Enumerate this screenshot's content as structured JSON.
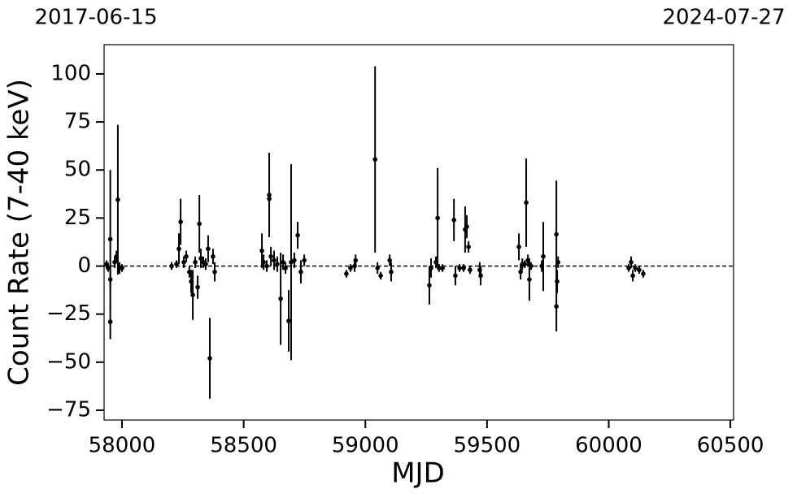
{
  "chart_data": {
    "type": "errorbar-scatter",
    "xlabel": "MJD",
    "ylabel": "Count Rate (7-40 keV)",
    "annotations": [
      "2017-06-15",
      "2024-07-27"
    ],
    "xlim": [
      57926.5,
      60513
    ],
    "ylim": [
      -80.1,
      115.2
    ],
    "xticks": [
      58000,
      58500,
      59000,
      59500,
      60000,
      60500
    ],
    "yticks": [
      {
        "value": -75,
        "label": "−75"
      },
      {
        "value": -50,
        "label": "−50"
      },
      {
        "value": -25,
        "label": "−25"
      },
      0,
      25,
      50,
      75,
      100
    ],
    "hline": 0,
    "series": [
      {
        "color": "#000000",
        "x": [
          57937,
          57943,
          57952,
          57952,
          57952,
          57970,
          57977,
          57983,
          57990,
          58000,
          58204,
          58224,
          58234,
          58241,
          58254,
          58264,
          58277,
          58284,
          58291,
          58301,
          58311,
          58318,
          58324,
          58334,
          58344,
          58354,
          58361,
          58374,
          58381,
          58575,
          58582,
          58595,
          58605,
          58605,
          58612,
          58625,
          58638,
          58652,
          58662,
          58672,
          58685,
          58695,
          58708,
          58722,
          58735,
          58749,
          58922,
          58939,
          58956,
          58960,
          59040,
          59050,
          59063,
          59100,
          59106,
          59263,
          59270,
          59290,
          59297,
          59303,
          59317,
          59364,
          59370,
          59387,
          59404,
          59410,
          59417,
          59424,
          59430,
          59470,
          59474,
          59631,
          59638,
          59645,
          59655,
          59661,
          59668,
          59674,
          59681,
          59725,
          59731,
          59785,
          59785,
          59788,
          59792,
          60082,
          60092,
          60099,
          60109,
          60125,
          60142
        ],
        "values": [
          1,
          -1,
          14,
          -29,
          -7,
          2,
          5,
          34.5,
          -1,
          -1,
          0,
          1,
          9,
          23,
          2,
          5,
          -3,
          -8,
          -15,
          2,
          -11,
          22,
          4,
          2,
          1,
          9,
          -48,
          5,
          -3,
          8,
          2,
          0,
          37,
          35,
          5,
          3,
          1,
          -17,
          2,
          -1,
          -28.5,
          2,
          3,
          16,
          -3,
          3,
          -4,
          -1,
          0,
          3,
          55.5,
          -1,
          -5,
          3,
          -3,
          -10,
          -1,
          2,
          25,
          -1,
          -1,
          24,
          -5,
          -1,
          -1,
          19,
          20.5,
          10,
          -2,
          -2,
          -5,
          10,
          -3,
          1,
          1,
          33,
          3,
          -7,
          0,
          0,
          5,
          16.5,
          -21,
          -8,
          2,
          -1,
          2,
          -5,
          -1,
          -2,
          -4
        ],
        "errors": [
          2,
          2,
          36,
          9,
          5,
          3,
          3,
          39,
          3,
          2,
          2,
          2,
          8,
          12,
          3,
          3,
          3,
          6,
          13,
          3,
          6,
          15,
          5,
          3,
          3,
          7,
          21,
          4,
          5,
          9,
          4,
          3,
          22,
          5,
          5,
          5,
          4,
          24,
          4,
          3,
          16,
          51,
          4,
          7,
          6,
          3,
          2,
          2,
          3,
          3,
          48.5,
          3,
          2,
          3,
          5,
          10,
          5,
          3,
          26,
          2,
          2,
          11,
          5,
          2,
          2,
          12,
          6,
          3,
          2,
          4,
          5,
          7,
          4,
          3,
          2,
          23,
          3,
          11,
          2,
          3,
          18,
          28,
          13,
          6,
          3,
          2,
          3,
          3,
          2,
          2,
          2
        ]
      }
    ]
  }
}
